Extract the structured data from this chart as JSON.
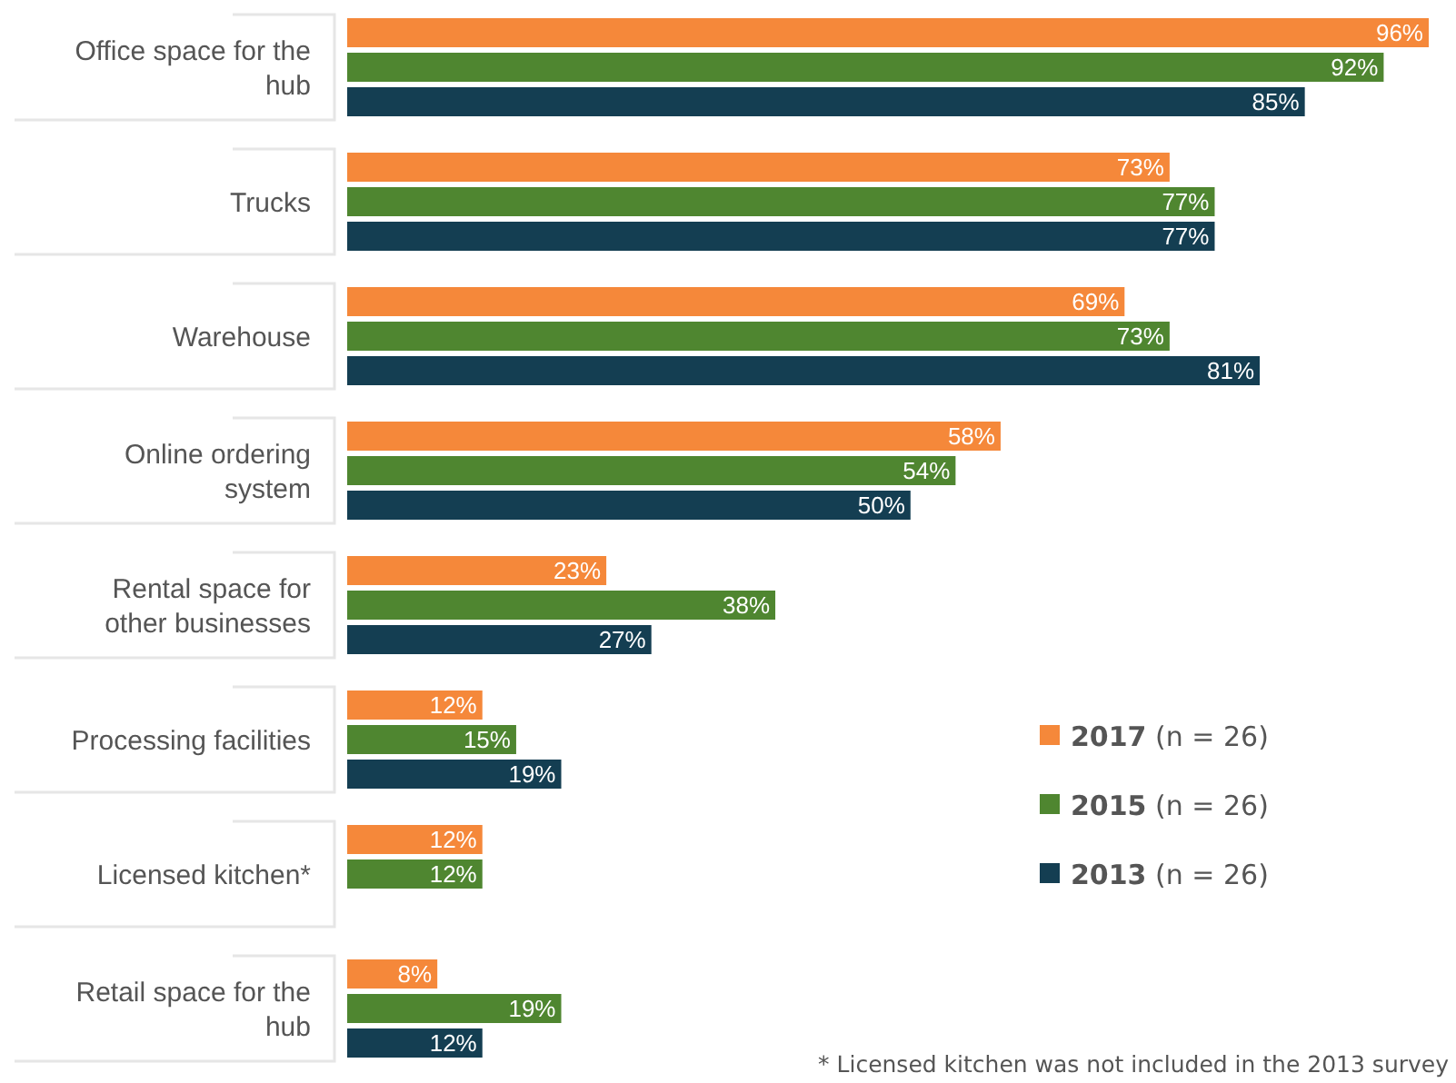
{
  "chart_data": {
    "type": "bar",
    "orientation": "horizontal",
    "categories": [
      "Office space for the hub",
      "Trucks",
      "Warehouse",
      "Online ordering system",
      "Rental space for other businesses",
      "Processing facilities",
      "Licensed kitchen*",
      "Retail space for the hub"
    ],
    "series": [
      {
        "name": "2017 (n = 26)",
        "color": "#f5883a",
        "values": [
          96,
          73,
          69,
          58,
          23,
          12,
          12,
          8
        ],
        "value_labels": [
          "96%",
          "73%",
          "69%",
          "58%",
          "23%",
          "12%",
          "12%",
          "8%"
        ]
      },
      {
        "name": "2015 (n = 26)",
        "color": "#4f8630",
        "values": [
          92,
          77,
          73,
          54,
          38,
          15,
          12,
          19
        ],
        "value_labels": [
          "92%",
          "77%",
          "73%",
          "54%",
          "38%",
          "15%",
          "12%",
          "19%"
        ]
      },
      {
        "name": "2013 (n = 26)",
        "color": "#143e52",
        "values": [
          85,
          77,
          81,
          50,
          27,
          19,
          null,
          12
        ],
        "value_labels": [
          "85%",
          "77%",
          "81%",
          "50%",
          "27%",
          "19%",
          null,
          "12%"
        ]
      }
    ],
    "legend": "bottom right",
    "annotations": [
      "* Licensed kitchen was not included in the 2013 survey"
    ]
  }
}
